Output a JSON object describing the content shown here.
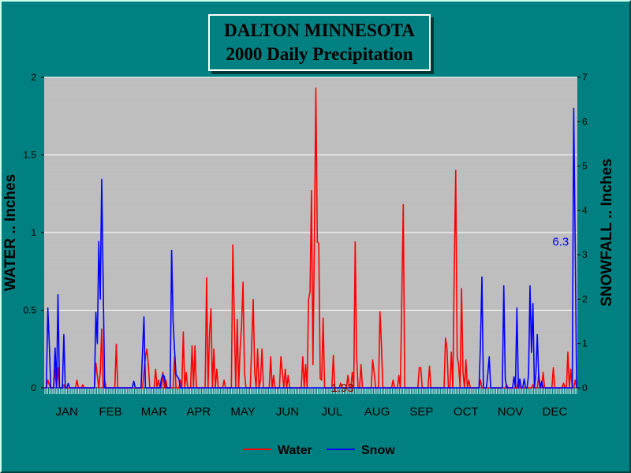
{
  "title_line1": "DALTON MINNESOTA",
  "title_line2": "2000 Daily Precipitation",
  "chart_data": {
    "type": "line",
    "title": "DALTON MINNESOTA 2000 Daily Precipitation",
    "ylabel_left": "WATER  ..  Inches",
    "ylabel_right": "SNOWFALL .. Inches",
    "ylim_left": [
      0,
      2
    ],
    "ylim_right": [
      0,
      7
    ],
    "y_ticks_left": [
      "0",
      "0.5",
      "1",
      "1.5",
      "2"
    ],
    "y_ticks_right": [
      "0",
      "1",
      "2",
      "3",
      "4",
      "5",
      "6",
      "7"
    ],
    "x_categories": [
      "JAN",
      "FEB",
      "MAR",
      "APR",
      "MAY",
      "JUN",
      "JUL",
      "AUG",
      "SEP",
      "OCT",
      "NOV",
      "DEC"
    ],
    "grid": true,
    "legend_placement": "bottom",
    "annotations": [
      {
        "text": "1.93",
        "series": "Water",
        "day": 193,
        "color": "#800000"
      },
      {
        "text": "6.3",
        "series": "Snow",
        "day": 365,
        "color": "#0000ff"
      }
    ],
    "series": [
      {
        "name": "Water",
        "axis": "left",
        "color": "#ff0000",
        "points": [
          [
            3,
            0.05
          ],
          [
            4,
            0.02
          ],
          [
            8,
            0.12
          ],
          [
            10,
            0.13
          ],
          [
            14,
            0.02
          ],
          [
            23,
            0.05
          ],
          [
            27,
            0.02
          ],
          [
            36,
            0.16
          ],
          [
            37,
            0.08
          ],
          [
            39,
            0.1
          ],
          [
            40,
            0.38
          ],
          [
            42,
            0.05
          ],
          [
            50,
            0.28
          ],
          [
            69,
            0.1
          ],
          [
            70,
            0.2
          ],
          [
            71,
            0.25
          ],
          [
            72,
            0.15
          ],
          [
            77,
            0.12
          ],
          [
            79,
            0.05
          ],
          [
            82,
            0.1
          ],
          [
            84,
            0.05
          ],
          [
            90,
            0.2
          ],
          [
            94,
            0.05
          ],
          [
            96,
            0.36
          ],
          [
            98,
            0.1
          ],
          [
            102,
            0.27
          ],
          [
            104,
            0.27
          ],
          [
            112,
            0.71
          ],
          [
            114,
            0.35
          ],
          [
            115,
            0.51
          ],
          [
            117,
            0.25
          ],
          [
            119,
            0.12
          ],
          [
            124,
            0.05
          ],
          [
            130,
            0.92
          ],
          [
            131,
            0.45
          ],
          [
            133,
            0.44
          ],
          [
            135,
            0.25
          ],
          [
            136,
            0.4
          ],
          [
            137,
            0.68
          ],
          [
            138,
            0.1
          ],
          [
            143,
            0.3
          ],
          [
            144,
            0.57
          ],
          [
            145,
            0.1
          ],
          [
            147,
            0.25
          ],
          [
            149,
            0.05
          ],
          [
            150,
            0.25
          ],
          [
            156,
            0.2
          ],
          [
            158,
            0.08
          ],
          [
            163,
            0.2
          ],
          [
            164,
            0.1
          ],
          [
            166,
            0.12
          ],
          [
            168,
            0.08
          ],
          [
            178,
            0.2
          ],
          [
            180,
            0.15
          ],
          [
            182,
            0.57
          ],
          [
            183,
            0.62
          ],
          [
            184,
            1.27
          ],
          [
            185,
            0.15
          ],
          [
            186,
            0.95
          ],
          [
            187,
            1.93
          ],
          [
            188,
            0.94
          ],
          [
            189,
            0.93
          ],
          [
            190,
            0.06
          ],
          [
            191,
            0.05
          ],
          [
            192,
            0.45
          ],
          [
            199,
            0.21
          ],
          [
            204,
            0.03
          ],
          [
            209,
            0.08
          ],
          [
            212,
            0.1
          ],
          [
            214,
            0.94
          ],
          [
            215,
            0.2
          ],
          [
            218,
            0.15
          ],
          [
            226,
            0.18
          ],
          [
            227,
            0.1
          ],
          [
            231,
            0.49
          ],
          [
            232,
            0.28
          ],
          [
            240,
            0.05
          ],
          [
            244,
            0.08
          ],
          [
            246,
            0.6
          ],
          [
            247,
            1.18
          ],
          [
            258,
            0.13
          ],
          [
            259,
            0.13
          ],
          [
            265,
            0.14
          ],
          [
            276,
            0.32
          ],
          [
            277,
            0.25
          ],
          [
            280,
            0.23
          ],
          [
            282,
            0.75
          ],
          [
            283,
            1.4
          ],
          [
            284,
            0.2
          ],
          [
            285,
            0.15
          ],
          [
            287,
            0.64
          ],
          [
            288,
            0.1
          ],
          [
            290,
            0.18
          ],
          [
            292,
            0.05
          ],
          [
            300,
            0.05
          ],
          [
            318,
            0.02
          ],
          [
            326,
            0.05
          ],
          [
            336,
            0.02
          ],
          [
            340,
            0.09
          ],
          [
            343,
            0.1
          ],
          [
            350,
            0.13
          ],
          [
            357,
            0.03
          ],
          [
            360,
            0.23
          ],
          [
            362,
            0.12
          ],
          [
            365,
            0.05
          ]
        ]
      },
      {
        "name": "Snow",
        "axis": "right",
        "color": "#0000ff",
        "points": [
          [
            3,
            1.8
          ],
          [
            4,
            1.0
          ],
          [
            8,
            0.9
          ],
          [
            10,
            2.1
          ],
          [
            14,
            1.2
          ],
          [
            17,
            0.1
          ],
          [
            36,
            1.7
          ],
          [
            37,
            1.0
          ],
          [
            38,
            3.3
          ],
          [
            39,
            2.0
          ],
          [
            40,
            4.7
          ],
          [
            41,
            2.4
          ],
          [
            62,
            0.15
          ],
          [
            68,
            0.8
          ],
          [
            69,
            1.6
          ],
          [
            81,
            0.2
          ],
          [
            82,
            0.3
          ],
          [
            83,
            0.25
          ],
          [
            88,
            3.1
          ],
          [
            89,
            1.5
          ],
          [
            90,
            0.85
          ],
          [
            91,
            0.3
          ],
          [
            92,
            0.25
          ],
          [
            93,
            0.2
          ],
          [
            300,
            1.0
          ],
          [
            301,
            2.5
          ],
          [
            305,
            0.3
          ],
          [
            306,
            0.7
          ],
          [
            316,
            2.3
          ],
          [
            317,
            0.2
          ],
          [
            323,
            0.25
          ],
          [
            325,
            1.8
          ],
          [
            327,
            0.2
          ],
          [
            330,
            0.2
          ],
          [
            333,
            0.3
          ],
          [
            334,
            2.3
          ],
          [
            335,
            0.8
          ],
          [
            336,
            1.9
          ],
          [
            338,
            0.3
          ],
          [
            339,
            1.2
          ],
          [
            340,
            0.2
          ],
          [
            342,
            0.15
          ],
          [
            364,
            6.3
          ],
          [
            365,
            3.3
          ]
        ]
      }
    ]
  },
  "legend": [
    {
      "label": "Water",
      "color": "#ff0000"
    },
    {
      "label": "Snow",
      "color": "#0000ff"
    }
  ]
}
